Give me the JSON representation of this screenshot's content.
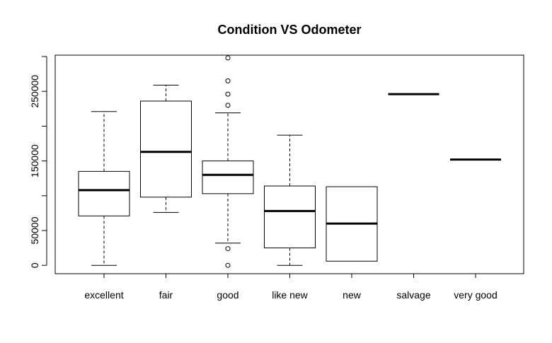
{
  "chart_data": {
    "type": "boxplot",
    "title": "Condition VS Odometer",
    "xlabel": "",
    "ylabel": "",
    "ylim": [
      -12000,
      302000
    ],
    "y_ticks": [
      0,
      50000,
      150000,
      250000
    ],
    "y_tick_labels": [
      "0",
      "50000",
      "150000",
      "250000"
    ],
    "categories": [
      "excellent",
      "fair",
      "good",
      "like new",
      "new",
      "salvage",
      "very good"
    ],
    "boxes": [
      {
        "category": "excellent",
        "whisker_low": 0,
        "q1": 71000,
        "median": 108000,
        "q3": 135000,
        "whisker_high": 221000,
        "outliers": []
      },
      {
        "category": "fair",
        "whisker_low": 76000,
        "q1": 98000,
        "median": 163000,
        "q3": 236000,
        "whisker_high": 259000,
        "outliers": []
      },
      {
        "category": "good",
        "whisker_low": 32000,
        "q1": 103000,
        "median": 130000,
        "q3": 150000,
        "whisker_high": 219000,
        "outliers": [
          0,
          24000,
          230000,
          246000,
          265000,
          298000
        ]
      },
      {
        "category": "like new",
        "whisker_low": 0,
        "q1": 25000,
        "median": 78000,
        "q3": 114000,
        "whisker_high": 187000,
        "outliers": []
      },
      {
        "category": "new",
        "whisker_low": 6000,
        "q1": 6000,
        "median": 60000,
        "q3": 113000,
        "whisker_high": 113000,
        "outliers": []
      },
      {
        "category": "salvage",
        "whisker_low": 246000,
        "q1": 246000,
        "median": 246000,
        "q3": 246000,
        "whisker_high": 246000,
        "outliers": []
      },
      {
        "category": "very good",
        "whisker_low": 152000,
        "q1": 152000,
        "median": 152000,
        "q3": 152000,
        "whisker_high": 152000,
        "outliers": []
      }
    ]
  }
}
